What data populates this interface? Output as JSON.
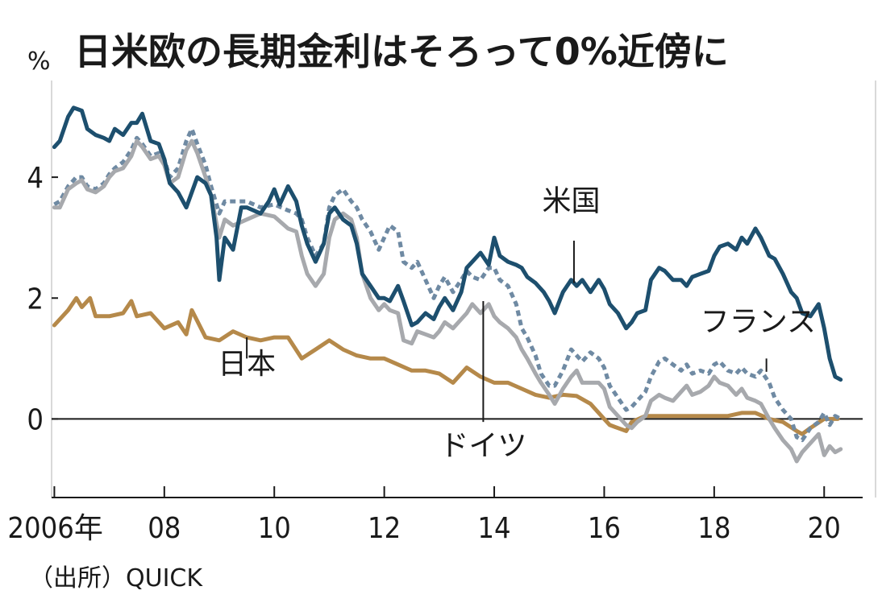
{
  "chart_data": {
    "type": "line",
    "title": "日米欧の長期金利はそろって0%近傍に",
    "ylabel": "%",
    "source": "（出所）QUICK",
    "ylim": [
      -1.3,
      5.6
    ],
    "xlim": [
      2005.95,
      2020.7
    ],
    "y_ticks": [
      {
        "value": 0,
        "label": "0"
      },
      {
        "value": 2,
        "label": "2"
      },
      {
        "value": 4,
        "label": "4"
      }
    ],
    "x_ticks": [
      {
        "value": 2006,
        "label": "2006年"
      },
      {
        "value": 2008,
        "label": "08"
      },
      {
        "value": 2010,
        "label": "10"
      },
      {
        "value": 2012,
        "label": "12"
      },
      {
        "value": 2014,
        "label": "14"
      },
      {
        "value": 2016,
        "label": "16"
      },
      {
        "value": 2018,
        "label": "18"
      },
      {
        "value": 2020,
        "label": "20"
      }
    ],
    "series": [
      {
        "name": "日本",
        "color": "#b5894a",
        "dash": "solid",
        "label_pos": [
          2009.5,
          0.75
        ],
        "pointer": [
          [
            2009.5,
            1.35
          ],
          [
            2009.5,
            1.0
          ]
        ],
        "x": [
          2006.0,
          2006.25,
          2006.4,
          2006.5,
          2006.65,
          2006.75,
          2007.0,
          2007.25,
          2007.4,
          2007.5,
          2007.75,
          2008.0,
          2008.25,
          2008.4,
          2008.5,
          2008.75,
          2009.0,
          2009.25,
          2009.5,
          2009.75,
          2010.0,
          2010.25,
          2010.5,
          2010.75,
          2011.0,
          2011.25,
          2011.5,
          2011.75,
          2012.0,
          2012.25,
          2012.5,
          2012.75,
          2013.0,
          2013.25,
          2013.5,
          2013.75,
          2014.0,
          2014.25,
          2014.5,
          2014.75,
          2015.0,
          2015.25,
          2015.5,
          2015.75,
          2016.0,
          2016.1,
          2016.25,
          2016.4,
          2016.5,
          2016.75,
          2017.0,
          2017.25,
          2017.5,
          2017.75,
          2018.0,
          2018.25,
          2018.5,
          2018.75,
          2019.0,
          2019.25,
          2019.5,
          2019.6,
          2019.75,
          2020.0,
          2020.25
        ],
        "values": [
          1.55,
          1.8,
          2.0,
          1.85,
          2.0,
          1.7,
          1.7,
          1.75,
          1.95,
          1.7,
          1.75,
          1.5,
          1.6,
          1.4,
          1.8,
          1.35,
          1.3,
          1.45,
          1.35,
          1.3,
          1.35,
          1.35,
          1.0,
          1.15,
          1.3,
          1.15,
          1.05,
          1.0,
          1.0,
          0.9,
          0.8,
          0.8,
          0.75,
          0.6,
          0.85,
          0.7,
          0.6,
          0.6,
          0.5,
          0.4,
          0.35,
          0.4,
          0.38,
          0.25,
          0.0,
          -0.1,
          -0.15,
          -0.2,
          -0.05,
          0.05,
          0.05,
          0.05,
          0.05,
          0.05,
          0.05,
          0.05,
          0.1,
          0.1,
          0.0,
          -0.05,
          -0.2,
          -0.25,
          -0.15,
          0.0,
          0.0
        ]
      },
      {
        "name": "米国",
        "color": "#1d4f6e",
        "dash": "solid",
        "label_pos": [
          2015.4,
          3.45
        ],
        "pointer": [
          [
            2015.45,
            2.95
          ],
          [
            2015.45,
            2.25
          ]
        ],
        "x": [
          2006.0,
          2006.1,
          2006.25,
          2006.35,
          2006.5,
          2006.6,
          2006.75,
          2006.9,
          2007.0,
          2007.1,
          2007.25,
          2007.4,
          2007.5,
          2007.6,
          2007.75,
          2007.9,
          2008.0,
          2008.1,
          2008.25,
          2008.4,
          2008.5,
          2008.6,
          2008.75,
          2008.85,
          2008.95,
          2009.0,
          2009.1,
          2009.25,
          2009.4,
          2009.5,
          2009.75,
          2009.9,
          2010.0,
          2010.1,
          2010.25,
          2010.4,
          2010.5,
          2010.6,
          2010.75,
          2010.9,
          2011.0,
          2011.1,
          2011.25,
          2011.4,
          2011.5,
          2011.6,
          2011.75,
          2011.9,
          2012.0,
          2012.1,
          2012.25,
          2012.35,
          2012.5,
          2012.6,
          2012.75,
          2012.9,
          2013.0,
          2013.1,
          2013.25,
          2013.4,
          2013.5,
          2013.6,
          2013.75,
          2013.9,
          2014.0,
          2014.1,
          2014.25,
          2014.4,
          2014.5,
          2014.6,
          2014.75,
          2014.9,
          2015.0,
          2015.1,
          2015.25,
          2015.4,
          2015.5,
          2015.6,
          2015.75,
          2015.9,
          2016.0,
          2016.1,
          2016.25,
          2016.4,
          2016.5,
          2016.6,
          2016.75,
          2016.85,
          2017.0,
          2017.1,
          2017.25,
          2017.4,
          2017.5,
          2017.6,
          2017.75,
          2017.9,
          2018.0,
          2018.1,
          2018.25,
          2018.4,
          2018.5,
          2018.6,
          2018.75,
          2018.85,
          2019.0,
          2019.1,
          2019.25,
          2019.4,
          2019.5,
          2019.6,
          2019.75,
          2019.9,
          2020.0,
          2020.1,
          2020.2,
          2020.3
        ],
        "values": [
          4.5,
          4.6,
          5.0,
          5.15,
          5.1,
          4.8,
          4.7,
          4.65,
          4.6,
          4.8,
          4.7,
          4.9,
          4.9,
          5.05,
          4.6,
          4.55,
          4.3,
          3.9,
          3.75,
          3.5,
          3.75,
          4.0,
          3.9,
          3.7,
          3.0,
          2.3,
          3.0,
          2.8,
          3.5,
          3.5,
          3.4,
          3.6,
          3.8,
          3.55,
          3.85,
          3.6,
          3.2,
          2.9,
          2.6,
          2.9,
          3.4,
          3.5,
          3.3,
          3.2,
          2.9,
          2.4,
          2.2,
          2.0,
          2.0,
          1.95,
          2.2,
          1.95,
          1.55,
          1.6,
          1.75,
          1.65,
          1.85,
          2.0,
          1.8,
          2.1,
          2.5,
          2.6,
          2.75,
          2.55,
          3.0,
          2.7,
          2.6,
          2.55,
          2.5,
          2.35,
          2.25,
          2.1,
          1.95,
          1.75,
          2.1,
          2.3,
          2.2,
          2.3,
          2.1,
          2.3,
          2.15,
          1.9,
          1.75,
          1.5,
          1.6,
          1.75,
          1.8,
          2.3,
          2.5,
          2.45,
          2.3,
          2.3,
          2.2,
          2.35,
          2.4,
          2.45,
          2.7,
          2.85,
          2.9,
          2.8,
          3.0,
          2.9,
          3.15,
          3.0,
          2.7,
          2.65,
          2.4,
          2.1,
          2.0,
          1.75,
          1.7,
          1.9,
          1.5,
          1.0,
          0.7,
          0.65
        ]
      },
      {
        "name": "ドイツ",
        "color": "#a7a9ad",
        "dash": "solid",
        "label_pos": [
          2013.8,
          -0.6
        ],
        "pointer": [
          [
            2013.8,
            -0.05
          ],
          [
            2013.8,
            1.95
          ]
        ],
        "x": [
          2006.0,
          2006.1,
          2006.25,
          2006.4,
          2006.5,
          2006.6,
          2006.75,
          2006.9,
          2007.0,
          2007.1,
          2007.25,
          2007.4,
          2007.5,
          2007.6,
          2007.75,
          2007.9,
          2008.0,
          2008.1,
          2008.25,
          2008.4,
          2008.5,
          2008.6,
          2008.75,
          2008.85,
          2009.0,
          2009.1,
          2009.25,
          2009.5,
          2009.75,
          2010.0,
          2010.25,
          2010.4,
          2010.5,
          2010.6,
          2010.75,
          2010.9,
          2011.0,
          2011.1,
          2011.25,
          2011.4,
          2011.5,
          2011.6,
          2011.75,
          2011.9,
          2012.0,
          2012.1,
          2012.25,
          2012.35,
          2012.5,
          2012.6,
          2012.75,
          2012.9,
          2013.0,
          2013.1,
          2013.25,
          2013.4,
          2013.5,
          2013.6,
          2013.75,
          2013.9,
          2014.0,
          2014.1,
          2014.25,
          2014.4,
          2014.5,
          2014.6,
          2014.75,
          2014.85,
          2015.0,
          2015.1,
          2015.25,
          2015.4,
          2015.5,
          2015.6,
          2015.75,
          2015.9,
          2016.0,
          2016.1,
          2016.25,
          2016.4,
          2016.5,
          2016.6,
          2016.75,
          2016.85,
          2017.0,
          2017.1,
          2017.25,
          2017.4,
          2017.5,
          2017.6,
          2017.75,
          2017.9,
          2018.0,
          2018.1,
          2018.25,
          2018.4,
          2018.5,
          2018.6,
          2018.75,
          2018.85,
          2019.0,
          2019.1,
          2019.25,
          2019.4,
          2019.5,
          2019.6,
          2019.75,
          2019.9,
          2020.0,
          2020.1,
          2020.2,
          2020.3
        ],
        "values": [
          3.5,
          3.5,
          3.8,
          3.9,
          3.95,
          3.8,
          3.75,
          3.85,
          4.0,
          4.1,
          4.15,
          4.35,
          4.6,
          4.5,
          4.3,
          4.35,
          4.2,
          3.9,
          4.0,
          4.45,
          4.6,
          4.4,
          4.0,
          3.7,
          3.0,
          3.3,
          3.2,
          3.3,
          3.4,
          3.35,
          3.15,
          3.1,
          2.7,
          2.4,
          2.2,
          2.4,
          3.0,
          3.3,
          3.4,
          3.3,
          3.0,
          2.4,
          2.0,
          1.8,
          1.9,
          1.8,
          1.75,
          1.3,
          1.25,
          1.45,
          1.4,
          1.35,
          1.45,
          1.6,
          1.5,
          1.65,
          1.75,
          1.9,
          1.75,
          1.9,
          1.7,
          1.6,
          1.5,
          1.35,
          1.15,
          1.0,
          0.75,
          0.6,
          0.4,
          0.25,
          0.5,
          0.7,
          0.8,
          0.6,
          0.6,
          0.6,
          0.5,
          0.2,
          0.05,
          -0.1,
          -0.15,
          -0.05,
          0.05,
          0.3,
          0.4,
          0.35,
          0.3,
          0.45,
          0.55,
          0.4,
          0.45,
          0.55,
          0.7,
          0.6,
          0.55,
          0.4,
          0.5,
          0.35,
          0.3,
          0.25,
          0.0,
          -0.15,
          -0.35,
          -0.5,
          -0.7,
          -0.55,
          -0.4,
          -0.25,
          -0.6,
          -0.45,
          -0.55,
          -0.5
        ]
      },
      {
        "name": "フランス",
        "color": "#6f8aa3",
        "dash": "dotted",
        "label_pos": [
          2018.8,
          1.45
        ],
        "pointer": [
          [
            2018.95,
            1.0
          ],
          [
            2018.95,
            0.78
          ]
        ],
        "x": [
          2006.0,
          2006.1,
          2006.25,
          2006.4,
          2006.5,
          2006.6,
          2006.75,
          2006.9,
          2007.0,
          2007.1,
          2007.25,
          2007.4,
          2007.5,
          2007.6,
          2007.75,
          2007.9,
          2008.0,
          2008.1,
          2008.25,
          2008.4,
          2008.5,
          2008.6,
          2008.75,
          2008.85,
          2009.0,
          2009.1,
          2009.25,
          2009.5,
          2009.75,
          2010.0,
          2010.25,
          2010.4,
          2010.5,
          2010.6,
          2010.75,
          2010.9,
          2011.0,
          2011.1,
          2011.25,
          2011.4,
          2011.5,
          2011.6,
          2011.75,
          2011.9,
          2012.0,
          2012.1,
          2012.25,
          2012.35,
          2012.5,
          2012.6,
          2012.75,
          2012.9,
          2013.0,
          2013.1,
          2013.25,
          2013.4,
          2013.5,
          2013.6,
          2013.75,
          2013.9,
          2014.0,
          2014.1,
          2014.25,
          2014.4,
          2014.5,
          2014.6,
          2014.75,
          2014.85,
          2015.0,
          2015.1,
          2015.25,
          2015.4,
          2015.5,
          2015.6,
          2015.75,
          2015.9,
          2016.0,
          2016.1,
          2016.25,
          2016.4,
          2016.5,
          2016.6,
          2016.75,
          2016.85,
          2017.0,
          2017.1,
          2017.25,
          2017.4,
          2017.5,
          2017.6,
          2017.75,
          2017.9,
          2018.0,
          2018.1,
          2018.25,
          2018.4,
          2018.5,
          2018.6,
          2018.75,
          2018.85,
          2019.0,
          2019.1,
          2019.25,
          2019.4,
          2019.5,
          2019.6,
          2019.75,
          2019.9,
          2020.0,
          2020.1,
          2020.2,
          2020.3
        ],
        "values": [
          3.55,
          3.6,
          3.85,
          4.0,
          4.0,
          3.85,
          3.8,
          3.9,
          4.05,
          4.15,
          4.25,
          4.45,
          4.65,
          4.55,
          4.35,
          4.4,
          4.3,
          4.0,
          4.15,
          4.6,
          4.8,
          4.55,
          4.2,
          3.85,
          3.4,
          3.6,
          3.6,
          3.6,
          3.5,
          3.55,
          3.45,
          3.4,
          3.3,
          3.0,
          2.7,
          2.9,
          3.5,
          3.7,
          3.8,
          3.6,
          3.5,
          3.3,
          3.1,
          2.8,
          3.0,
          3.2,
          3.1,
          2.6,
          2.5,
          2.6,
          2.3,
          2.0,
          2.2,
          2.35,
          2.1,
          2.3,
          2.45,
          2.35,
          2.3,
          2.5,
          2.5,
          2.3,
          2.2,
          1.9,
          1.5,
          1.35,
          1.05,
          0.75,
          0.55,
          0.55,
          0.8,
          1.15,
          1.05,
          0.95,
          1.1,
          1.0,
          0.85,
          0.55,
          0.35,
          0.15,
          0.2,
          0.3,
          0.45,
          0.7,
          0.95,
          1.0,
          0.9,
          0.8,
          0.9,
          0.75,
          0.8,
          0.75,
          0.9,
          0.95,
          0.8,
          0.75,
          0.85,
          0.75,
          0.7,
          0.8,
          0.6,
          0.35,
          0.15,
          0.0,
          -0.3,
          -0.35,
          -0.15,
          -0.05,
          0.1,
          -0.1,
          0.05,
          0.0
        ]
      }
    ],
    "zero_line": true,
    "grid": false
  }
}
